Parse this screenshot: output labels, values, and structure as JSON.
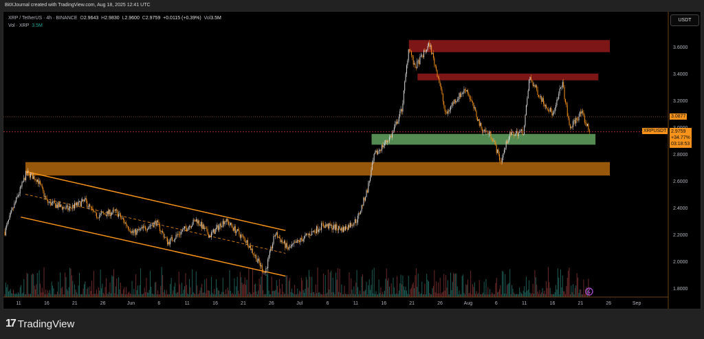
{
  "header": {
    "credit": "BitXJournal created with TradingView.com, Aug 18, 2025 12:41 UTC"
  },
  "legend": {
    "symbol": "XRP / TetherUS · 4h · BINANCE",
    "open_label": "O",
    "open": "2.9643",
    "high_label": "H",
    "high": "2.9830",
    "low_label": "L",
    "low": "2.9600",
    "close_label": "C",
    "close": "2.9759",
    "change": "+0.0115 (+0.39%)",
    "vol_label": "Vol",
    "vol": "3.5M",
    "volume_indicator": "Vol · XRP",
    "volume_value": "3.5M"
  },
  "price_axis": {
    "currency": "USDT",
    "ticks": [
      "3.6000",
      "3.4000",
      "3.2000",
      "3.0000",
      "2.8000",
      "2.6000",
      "2.4000",
      "2.2000",
      "2.0000",
      "1.8000"
    ],
    "marker_level": "3.0877",
    "symbol_tag": "XRPUSDT",
    "last_price": "2.9759",
    "last_change": "+34.77%",
    "countdown": "03:18:53"
  },
  "time_axis": {
    "ticks": [
      "11",
      "16",
      "21",
      "26",
      "Jun",
      "6",
      "11",
      "16",
      "21",
      "26",
      "Jul",
      "6",
      "11",
      "16",
      "21",
      "26",
      "Aug",
      "6",
      "11",
      "16",
      "21",
      "26",
      "Sep"
    ]
  },
  "footer": {
    "brand": "TradingView"
  },
  "colors": {
    "up": "#d9d9d9",
    "down": "#f7931a",
    "zone_red": "#8b1a1a",
    "zone_green": "#5c9a5c",
    "zone_orange": "#a8620c",
    "channel": "#f7931a"
  },
  "chart_data": {
    "type": "candlestick",
    "price_range": [
      1.75,
      3.75
    ],
    "zones": [
      {
        "color": "zone_red",
        "top": 3.66,
        "bottom": 3.57,
        "from_day": 68,
        "to_day": 103
      },
      {
        "color": "zone_red",
        "top": 3.41,
        "bottom": 3.36,
        "from_day": 69.5,
        "to_day": 101
      },
      {
        "color": "zone_green",
        "top": 2.96,
        "bottom": 2.88,
        "from_day": 61.5,
        "to_day": 100.5
      },
      {
        "color": "zone_orange",
        "top": 2.75,
        "bottom": 2.65,
        "from_day": 1.2,
        "to_day": 103
      }
    ],
    "channel": {
      "upper": [
        [
          1.2,
          2.68
        ],
        [
          46.5,
          2.24
        ]
      ],
      "lower": [
        [
          0.4,
          2.34
        ],
        [
          46.5,
          1.9
        ]
      ]
    },
    "path_days_from_may11": [
      -2.4,
      -1,
      1.4,
      3.3,
      5,
      8.6,
      11.6,
      13.4,
      17,
      20,
      24,
      26,
      31,
      33.3,
      36,
      39.9,
      42.9,
      44.7,
      47,
      49.5,
      53,
      56.6,
      59,
      60.8,
      62,
      65,
      66.8,
      68,
      69,
      71.6,
      73.3,
      74.4,
      75.8,
      78,
      80.6,
      82.4,
      84,
      85.4,
      88,
      89,
      91.4,
      93.2,
      94.7,
      96,
      98,
      99.5
    ],
    "path_prices": [
      2.23,
      2.4,
      2.67,
      2.62,
      2.45,
      2.4,
      2.46,
      2.35,
      2.38,
      2.22,
      2.3,
      2.15,
      2.32,
      2.2,
      2.32,
      2.15,
      1.92,
      2.22,
      2.1,
      2.18,
      2.28,
      2.25,
      2.32,
      2.55,
      2.8,
      2.95,
      3.15,
      3.62,
      3.45,
      3.63,
      3.35,
      3.1,
      3.2,
      3.3,
      3.0,
      2.95,
      2.75,
      2.95,
      2.98,
      3.38,
      3.2,
      3.1,
      3.35,
      3.0,
      3.12,
      2.976
    ]
  }
}
